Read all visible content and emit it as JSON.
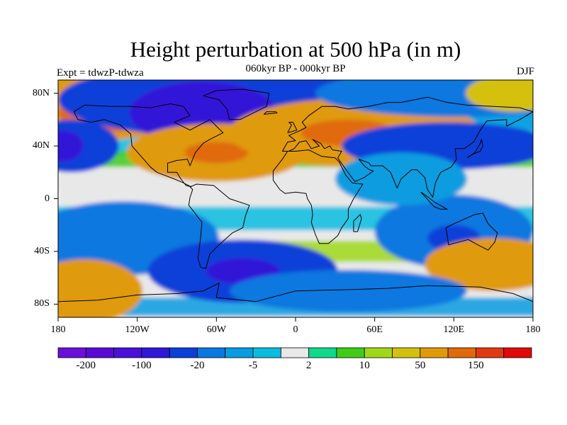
{
  "title": "Height perturbation at 500 hPa (in m)",
  "subtitle": "060kyr BP - 000kyr BP",
  "left_label": "Expt = tdwzP-tdwza",
  "right_label": "DJF",
  "axes": {
    "lat_ticks": [
      {
        "value": 80,
        "label": "80N"
      },
      {
        "value": 40,
        "label": "40N"
      },
      {
        "value": 0,
        "label": "0"
      },
      {
        "value": -40,
        "label": "40S"
      },
      {
        "value": -80,
        "label": "80S"
      }
    ],
    "lon_ticks": [
      {
        "value": -180,
        "label": "180"
      },
      {
        "value": -120,
        "label": "120W"
      },
      {
        "value": -60,
        "label": "60W"
      },
      {
        "value": 0,
        "label": "0"
      },
      {
        "value": 60,
        "label": "60E"
      },
      {
        "value": 120,
        "label": "120E"
      },
      {
        "value": 180,
        "label": "180"
      }
    ],
    "lon_range": [
      -180,
      180
    ],
    "lat_range": [
      -90,
      90
    ]
  },
  "colorbar": {
    "colors": [
      "#6a0fd8",
      "#5a0ad6",
      "#4a10d8",
      "#3018d8",
      "#0a40d8",
      "#0a78e0",
      "#0a9ce0",
      "#0abce0",
      "#e8e8e8",
      "#10d88c",
      "#40cc18",
      "#a0d818",
      "#d4c010",
      "#e09a08",
      "#e06a08",
      "#e03a10",
      "#e00808"
    ],
    "labels": [
      {
        "boundary": 1,
        "text": "-200"
      },
      {
        "boundary": 3,
        "text": "-100"
      },
      {
        "boundary": 5,
        "text": "-20"
      },
      {
        "boundary": 7,
        "text": "-5"
      },
      {
        "boundary": 9,
        "text": "2"
      },
      {
        "boundary": 11,
        "text": "10"
      },
      {
        "boundary": 13,
        "text": "50"
      },
      {
        "boundary": 15,
        "text": "150"
      }
    ]
  },
  "map_data": {
    "anomaly_blobs": [
      {
        "lon": -150,
        "lat": 70,
        "rx": 34,
        "ry": 13,
        "level": 13
      },
      {
        "lon": -140,
        "lat": 65,
        "rx": 20,
        "ry": 7,
        "level": 14
      },
      {
        "lon": -170,
        "lat": 40,
        "rx": 18,
        "ry": 10,
        "level": 4
      },
      {
        "lon": -177,
        "lat": 40,
        "rx": 8,
        "ry": 6,
        "level": 3
      },
      {
        "lon": -60,
        "lat": 75,
        "rx": 60,
        "ry": 14,
        "level": 4
      },
      {
        "lon": -70,
        "lat": 65,
        "rx": 28,
        "ry": 12,
        "level": 3
      },
      {
        "lon": -60,
        "lat": 35,
        "rx": 34,
        "ry": 11,
        "level": 13
      },
      {
        "lon": -60,
        "lat": 35,
        "rx": 12,
        "ry": 4,
        "level": 14
      },
      {
        "lon": 45,
        "lat": 50,
        "rx": 48,
        "ry": 13,
        "level": 13
      },
      {
        "lon": 40,
        "lat": 50,
        "rx": 18,
        "ry": 5,
        "level": 14
      },
      {
        "lon": 115,
        "lat": 40,
        "rx": 40,
        "ry": 9,
        "level": 4
      },
      {
        "lon": 125,
        "lat": 80,
        "rx": 55,
        "ry": 9,
        "level": 5
      },
      {
        "lon": 165,
        "lat": 80,
        "rx": 18,
        "ry": 7,
        "level": 12
      },
      {
        "lon": -130,
        "lat": -30,
        "rx": 36,
        "ry": 14,
        "level": 5
      },
      {
        "lon": -40,
        "lat": -55,
        "rx": 36,
        "ry": 12,
        "level": 4
      },
      {
        "lon": -40,
        "lat": -55,
        "rx": 14,
        "ry": 5,
        "level": 3
      },
      {
        "lon": 120,
        "lat": -25,
        "rx": 30,
        "ry": 14,
        "level": 5
      },
      {
        "lon": 120,
        "lat": -30,
        "rx": 10,
        "ry": 5,
        "level": 4
      },
      {
        "lon": -160,
        "lat": -70,
        "rx": 22,
        "ry": 12,
        "level": 13
      },
      {
        "lon": 150,
        "lat": -50,
        "rx": 26,
        "ry": 10,
        "level": 13
      },
      {
        "lon": 40,
        "lat": -70,
        "rx": 45,
        "ry": 8,
        "level": 5
      },
      {
        "lon": 80,
        "lat": 15,
        "rx": 25,
        "ry": 10,
        "level": 6
      }
    ]
  }
}
